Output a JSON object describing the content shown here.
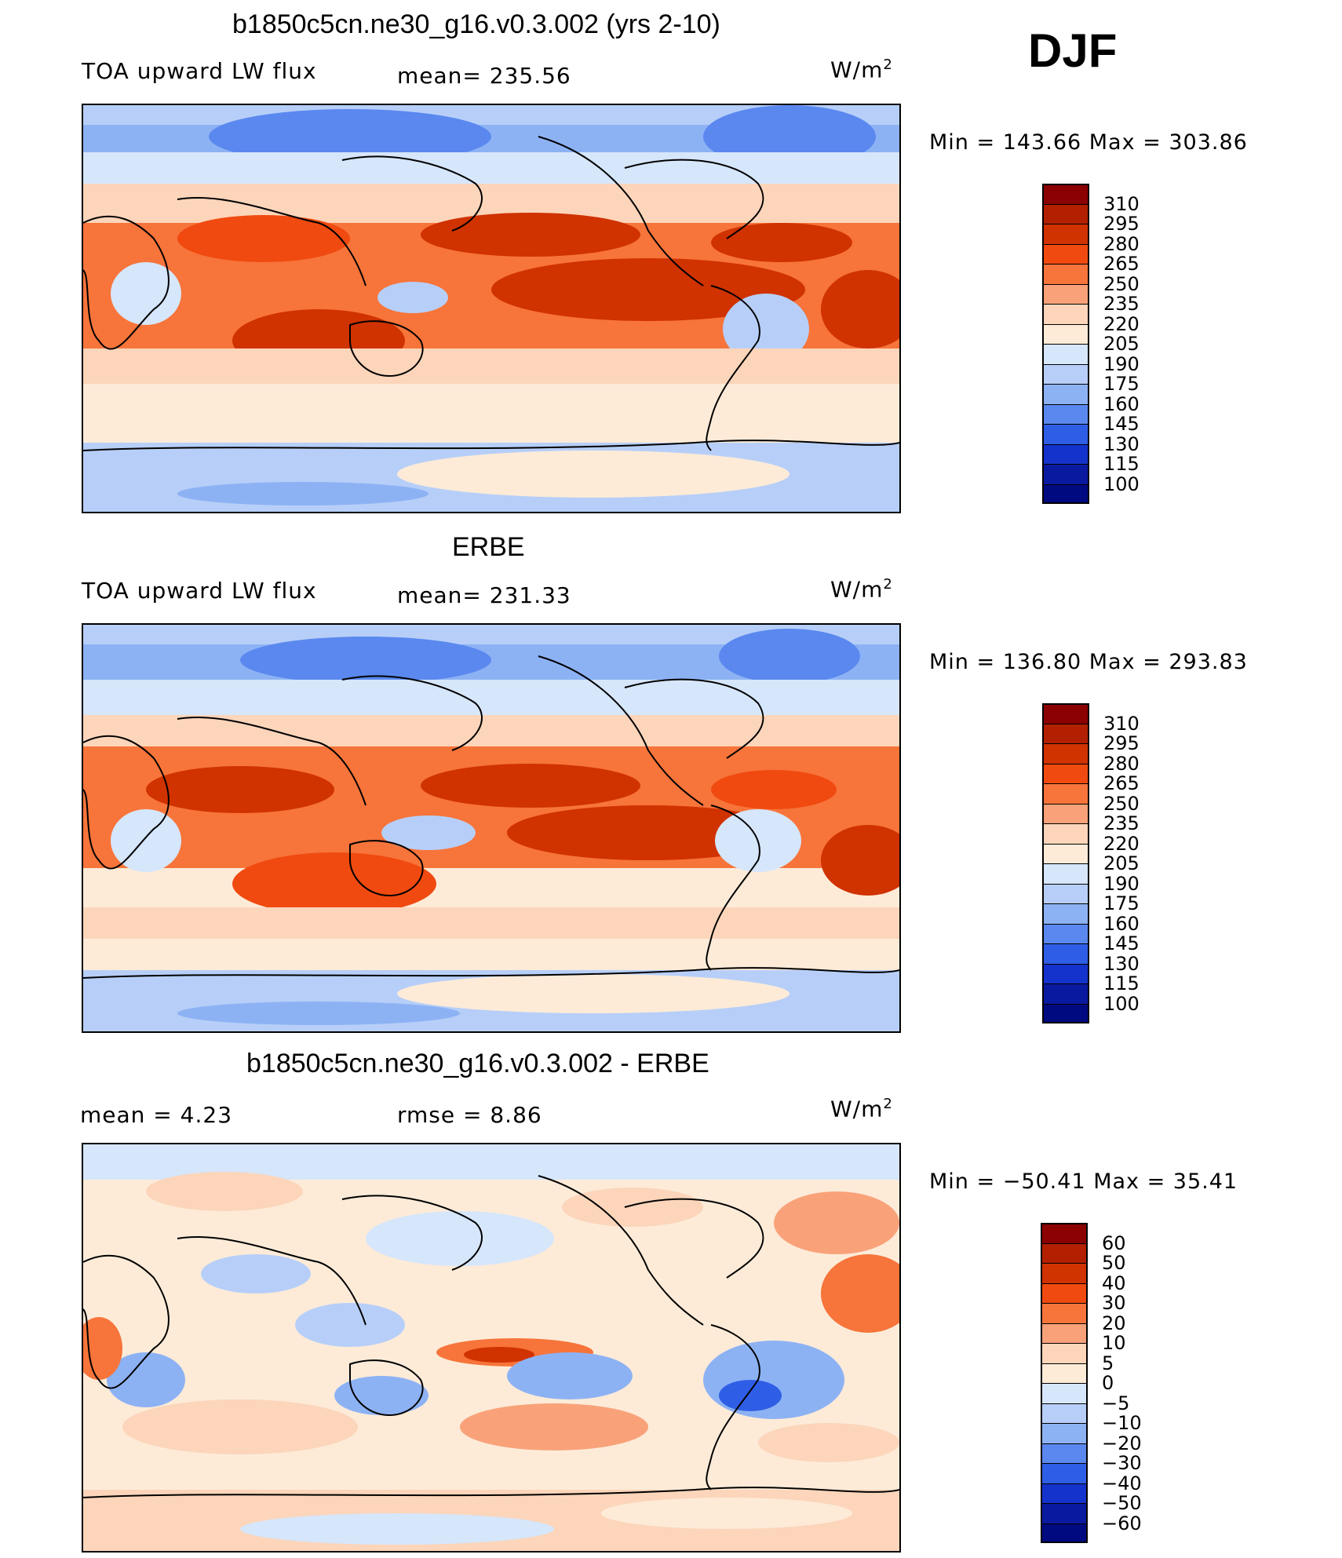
{
  "season": "DJF",
  "panels": [
    {
      "title": "b1850c5cn.ne30_g16.v0.3.002 (yrs 2-10)",
      "left_label": "TOA upward LW flux",
      "center_label": "mean= 235.56",
      "units": "W/m",
      "units_sup": "2",
      "minmax": "Min  =  143.66  Max  =  303.86"
    },
    {
      "title": "ERBE",
      "left_label": "TOA upward LW flux",
      "center_label": "mean= 231.33",
      "units": "W/m",
      "units_sup": "2",
      "minmax": "Min  =  136.80  Max  =  293.83"
    },
    {
      "title": "b1850c5cn.ne30_g16.v0.3.002 - ERBE",
      "left_label": "mean  =      4.23",
      "center_label": "rmse  =      8.86",
      "units": "W/m",
      "units_sup": "2",
      "minmax": "Min  =  −50.41  Max  =    35.41"
    }
  ],
  "chart_data": [
    {
      "type": "heatmap",
      "title": "b1850c5cn.ne30_g16.v0.3.002 (yrs 2-10)",
      "variable": "TOA upward LW flux",
      "units": "W/m2",
      "mean": 235.56,
      "min": 143.66,
      "max": 303.86,
      "colorbar_levels": [
        "310",
        "295",
        "280",
        "265",
        "250",
        "235",
        "220",
        "205",
        "190",
        "175",
        "160",
        "145",
        "130",
        "115",
        "100"
      ],
      "colors": [
        "#8b0000",
        "#b22000",
        "#d03200",
        "#f04a10",
        "#f7743a",
        "#f9a27a",
        "#fcd5ba",
        "#fdebd8",
        "#d6e6fb",
        "#b7cff8",
        "#8db2f4",
        "#5a88ef",
        "#2f5ee6",
        "#1433cc",
        "#0a1aa0",
        "#000a80"
      ]
    },
    {
      "type": "heatmap",
      "title": "ERBE",
      "variable": "TOA upward LW flux",
      "units": "W/m2",
      "mean": 231.33,
      "min": 136.8,
      "max": 293.83,
      "colorbar_levels": [
        "310",
        "295",
        "280",
        "265",
        "250",
        "235",
        "220",
        "205",
        "190",
        "175",
        "160",
        "145",
        "130",
        "115",
        "100"
      ],
      "colors": [
        "#8b0000",
        "#b22000",
        "#d03200",
        "#f04a10",
        "#f7743a",
        "#f9a27a",
        "#fcd5ba",
        "#fdebd8",
        "#d6e6fb",
        "#b7cff8",
        "#8db2f4",
        "#5a88ef",
        "#2f5ee6",
        "#1433cc",
        "#0a1aa0",
        "#000a80"
      ]
    },
    {
      "type": "heatmap",
      "title": "b1850c5cn.ne30_g16.v0.3.002 - ERBE",
      "units": "W/m2",
      "mean": 4.23,
      "rmse": 8.86,
      "min": -50.41,
      "max": 35.41,
      "colorbar_levels": [
        "60",
        "50",
        "40",
        "30",
        "20",
        "10",
        "5",
        "0",
        "−5",
        "−10",
        "−20",
        "−30",
        "−40",
        "−50",
        "−60"
      ],
      "colors": [
        "#8b0000",
        "#b22000",
        "#d03200",
        "#f04a10",
        "#f7743a",
        "#f9a27a",
        "#fcd5ba",
        "#fdebd8",
        "#d6e6fb",
        "#b7cff8",
        "#8db2f4",
        "#5a88ef",
        "#2f5ee6",
        "#1433cc",
        "#0a1aa0",
        "#000a80"
      ]
    }
  ]
}
